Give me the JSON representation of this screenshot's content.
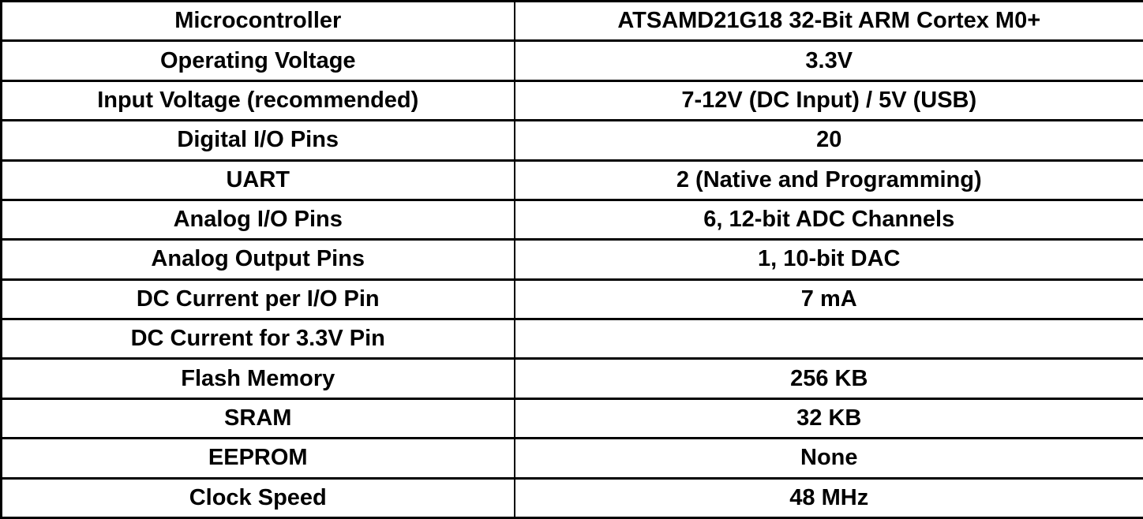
{
  "table": {
    "name": "microcontroller-specifications",
    "columns": [
      "label",
      "value"
    ],
    "rows": [
      {
        "label": "Microcontroller",
        "value": "ATSAMD21G18 32-Bit ARM Cortex M0+"
      },
      {
        "label": "Operating Voltage",
        "value": "3.3V"
      },
      {
        "label": "Input Voltage (recommended)",
        "value": "7-12V (DC Input) / 5V (USB)"
      },
      {
        "label": "Digital I/O Pins",
        "value": "20"
      },
      {
        "label": "UART",
        "value": "2 (Native and Programming)"
      },
      {
        "label": "Analog I/O Pins",
        "value": "6, 12-bit ADC Channels"
      },
      {
        "label": "Analog Output Pins",
        "value": "1, 10-bit DAC"
      },
      {
        "label": "DC Current per I/O Pin",
        "value": "7 mA"
      },
      {
        "label": "DC Current for 3.3V Pin",
        "value": ""
      },
      {
        "label": "Flash Memory",
        "value": "256 KB"
      },
      {
        "label": "SRAM",
        "value": "32 KB"
      },
      {
        "label": "EEPROM",
        "value": "None"
      },
      {
        "label": "Clock Speed",
        "value": "48 MHz"
      }
    ],
    "colors": {
      "border": "#000000",
      "text": "#000000",
      "background": "#ffffff"
    }
  }
}
